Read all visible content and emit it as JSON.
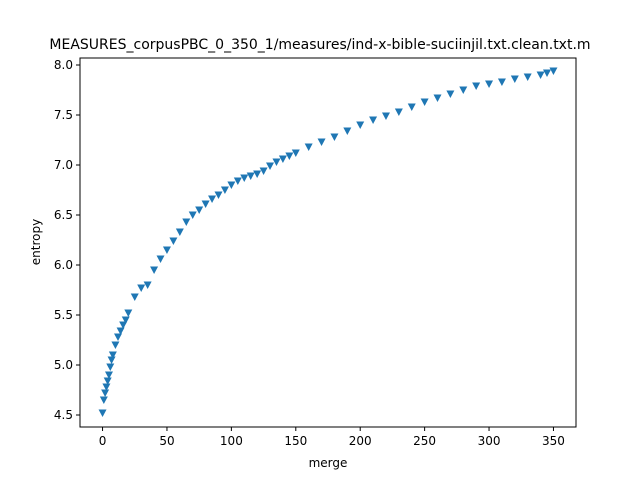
{
  "chart_data": {
    "type": "scatter",
    "title": "MEASURES_corpusPBC_0_350_1/measures/ind-x-bible-suciinjil.txt.clean.txt.m",
    "xlabel": "merge",
    "ylabel": "entropy",
    "xlim": [
      -17.5,
      367.5
    ],
    "ylim": [
      4.38,
      8.07
    ],
    "xticks": [
      0,
      50,
      100,
      150,
      200,
      250,
      300,
      350
    ],
    "yticks": [
      4.5,
      5.0,
      5.5,
      6.0,
      6.5,
      7.0,
      7.5,
      8.0
    ],
    "xtick_labels": [
      "0",
      "50",
      "100",
      "150",
      "200",
      "250",
      "300",
      "350"
    ],
    "ytick_labels": [
      "4.5",
      "5.0",
      "5.5",
      "6.0",
      "6.5",
      "7.0",
      "7.5",
      "8.0"
    ],
    "marker": "triangle-down",
    "color": "#1f77b4",
    "grid": false,
    "series": [
      {
        "x": [
          0,
          1,
          2,
          3,
          4,
          5,
          6,
          7,
          8,
          10,
          12,
          14,
          16,
          18,
          20,
          25,
          30,
          35,
          40,
          45,
          50,
          55,
          60,
          65,
          70,
          75,
          80,
          85,
          90,
          95,
          100,
          105,
          110,
          115,
          120,
          125,
          130,
          135,
          140,
          145,
          150,
          160,
          170,
          180,
          190,
          200,
          210,
          220,
          230,
          240,
          250,
          260,
          270,
          280,
          290,
          300,
          310,
          320,
          330,
          340,
          345,
          350
        ],
        "y": [
          4.52,
          4.65,
          4.72,
          4.78,
          4.84,
          4.9,
          4.98,
          5.05,
          5.1,
          5.2,
          5.28,
          5.34,
          5.4,
          5.45,
          5.52,
          5.68,
          5.77,
          5.8,
          5.95,
          6.06,
          6.15,
          6.24,
          6.33,
          6.43,
          6.5,
          6.55,
          6.61,
          6.66,
          6.7,
          6.75,
          6.8,
          6.84,
          6.87,
          6.89,
          6.91,
          6.94,
          6.99,
          7.03,
          7.06,
          7.09,
          7.12,
          7.18,
          7.23,
          7.28,
          7.34,
          7.4,
          7.45,
          7.49,
          7.53,
          7.58,
          7.63,
          7.67,
          7.71,
          7.75,
          7.79,
          7.81,
          7.83,
          7.86,
          7.88,
          7.9,
          7.92,
          7.94
        ]
      }
    ]
  }
}
